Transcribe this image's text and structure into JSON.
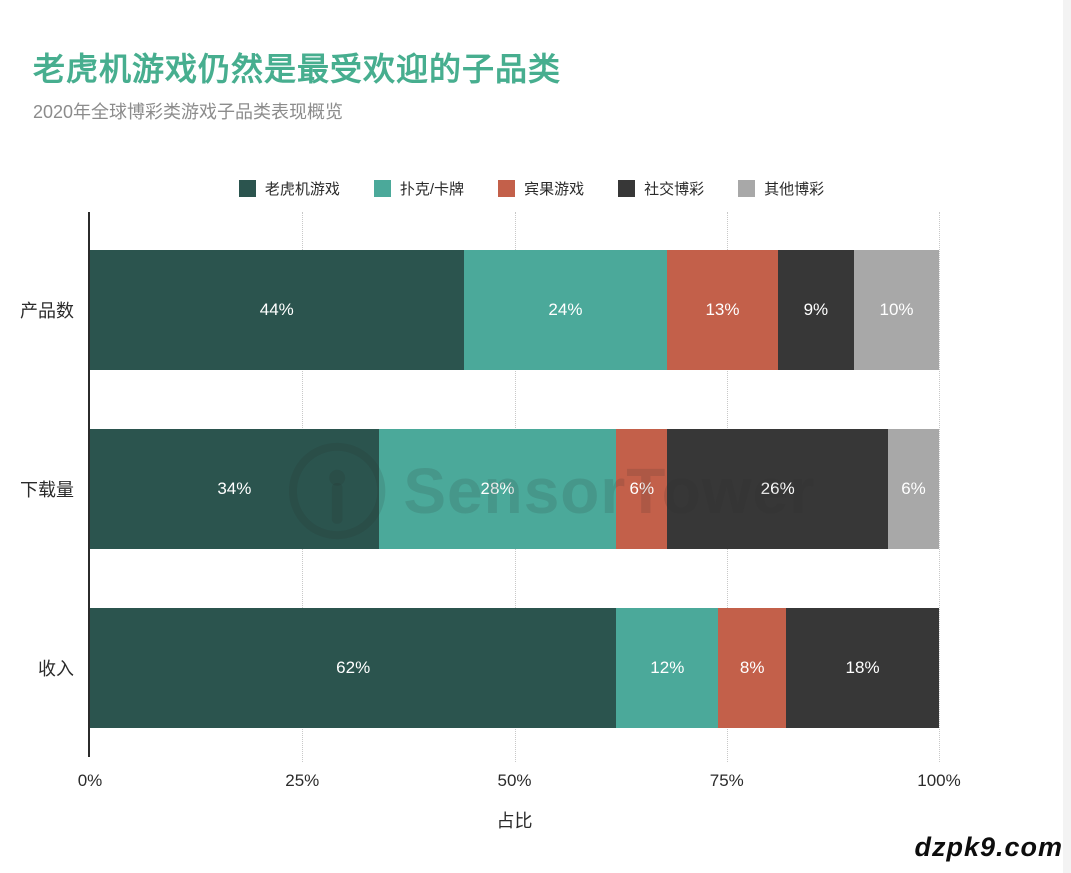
{
  "header": {
    "title": "老虎机游戏仍然是最受欢迎的子品类",
    "subtitle": "2020年全球博彩类游戏子品类表现概览"
  },
  "watermark": {
    "brand": "SensorTower",
    "site_badge": "dzpk9.com"
  },
  "colors": {
    "title_accent": "#47ae8f",
    "axis": "#2b2b2b",
    "gridline": "#c8c8c8",
    "bar_value_text": "#ffffff"
  },
  "chart_data": {
    "type": "bar",
    "orientation": "horizontal",
    "stacked": true,
    "title": "老虎机游戏仍然是最受欢迎的子品类",
    "subtitle": "2020年全球博彩类游戏子品类表现概览",
    "categories": [
      "产品数",
      "下载量",
      "收入"
    ],
    "series": [
      {
        "name": "老虎机游戏",
        "color": "#2b544e",
        "values": [
          44,
          34,
          62
        ]
      },
      {
        "name": "扑克/卡牌",
        "color": "#4ba99a",
        "values": [
          24,
          28,
          12
        ]
      },
      {
        "name": "宾果游戏",
        "color": "#c3604a",
        "values": [
          13,
          6,
          8
        ]
      },
      {
        "name": "社交博彩",
        "color": "#373737",
        "values": [
          9,
          26,
          18
        ]
      },
      {
        "name": "其他博彩",
        "color": "#a8a8a8",
        "values": [
          10,
          6,
          0
        ]
      }
    ],
    "xlabel": "占比",
    "ylabel": "",
    "x_ticks": [
      "0%",
      "25%",
      "50%",
      "75%",
      "100%"
    ],
    "xlim": [
      0,
      100
    ],
    "value_suffix": "%",
    "legend_position": "top",
    "grid": "dotted-vertical",
    "data_labels": "inside-center-white"
  }
}
